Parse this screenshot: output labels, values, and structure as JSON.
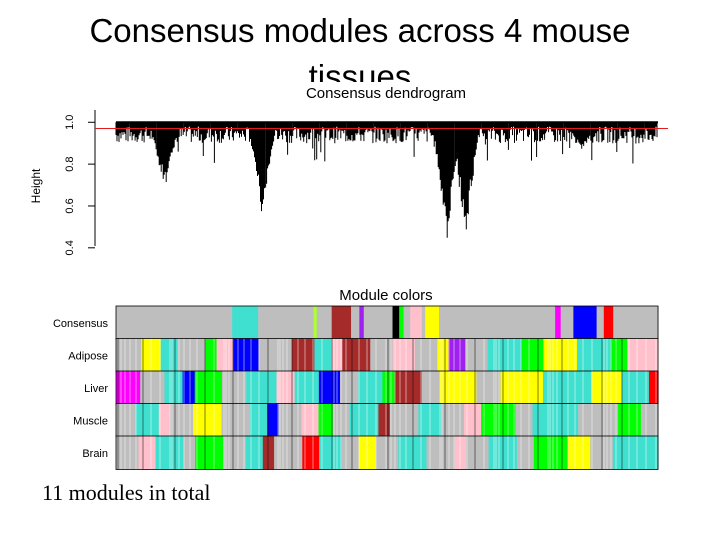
{
  "slide": {
    "title_line1": "Consensus modules across 4 mouse",
    "title_line2": "tissues",
    "caption": "11 modules in total"
  },
  "dendrogram": {
    "title": "Consensus dendrogram",
    "ylabel": "Height",
    "yticks": [
      "0.4",
      "0.6",
      "0.8",
      "1.0"
    ],
    "ytick_values": [
      0.4,
      0.6,
      0.8,
      1.0
    ],
    "ylim": [
      0.38,
      1.03
    ],
    "cut_height": 0.97,
    "cut_color": "#e41a1c",
    "deep_branches": [
      {
        "position": 0.09,
        "min_height": 0.67
      },
      {
        "position": 0.27,
        "min_height": 0.55
      },
      {
        "position": 0.61,
        "min_height": 0.42
      },
      {
        "position": 0.645,
        "min_height": 0.44
      },
      {
        "position": 0.86,
        "min_height": 0.87
      }
    ]
  },
  "module_colors": {
    "title": "Module colors",
    "rows": [
      {
        "label": "Consensus",
        "segments": [
          [
            "#bebebe",
            0.21
          ],
          [
            "#40e0d0",
            0.047
          ],
          [
            "#bebebe",
            0.1
          ],
          [
            "#adff2f",
            0.006
          ],
          [
            "#bebebe",
            0.027
          ],
          [
            "#a52a2a",
            0.035
          ],
          [
            "#bebebe",
            0.015
          ],
          [
            "#a020f0",
            0.008
          ],
          [
            "#bebebe",
            0.052
          ],
          [
            "#000000",
            0.012
          ],
          [
            "#00ff00",
            0.008
          ],
          [
            "#bebebe",
            0.012
          ],
          [
            "#ffc0cb",
            0.021
          ],
          [
            "#bebebe",
            0.006
          ],
          [
            "#ffff00",
            0.025
          ],
          [
            "#bebebe",
            0.21
          ],
          [
            "#ff00ff",
            0.01
          ],
          [
            "#bebebe",
            0.023
          ],
          [
            "#0000ff",
            0.042
          ],
          [
            "#bebebe",
            0.013
          ],
          [
            "#ff0000",
            0.017
          ],
          [
            "#bebebe",
            0.081
          ]
        ]
      },
      {
        "label": "Adipose",
        "segments": [
          [
            "#bebebe",
            0.045
          ],
          [
            "#ffff00",
            0.035
          ],
          [
            "#40e0d0",
            0.03
          ],
          [
            "#bebebe",
            0.05
          ],
          [
            "#00ff00",
            0.02
          ],
          [
            "#ffc0cb",
            0.03
          ],
          [
            "#0000ff",
            0.045
          ],
          [
            "#bebebe",
            0.06
          ],
          [
            "#a52a2a",
            0.04
          ],
          [
            "#40e0d0",
            0.03
          ],
          [
            "#ffc0cb",
            0.02
          ],
          [
            "#a52a2a",
            0.05
          ],
          [
            "#bebebe",
            0.04
          ],
          [
            "#ffc0cb",
            0.04
          ],
          [
            "#bebebe",
            0.04
          ],
          [
            "#ffff00",
            0.02
          ],
          [
            "#a020f0",
            0.03
          ],
          [
            "#bebebe",
            0.04
          ],
          [
            "#40e0d0",
            0.06
          ],
          [
            "#00ff00",
            0.04
          ],
          [
            "#ffff00",
            0.06
          ],
          [
            "#40e0d0",
            0.06
          ],
          [
            "#00ff00",
            0.03
          ],
          [
            "#ffc0cb",
            0.055
          ]
        ]
      },
      {
        "label": "Liver",
        "segments": [
          [
            "#ff00ff",
            0.04
          ],
          [
            "#bebebe",
            0.04
          ],
          [
            "#40e0d0",
            0.03
          ],
          [
            "#0000ff",
            0.02
          ],
          [
            "#00ff00",
            0.045
          ],
          [
            "#bebebe",
            0.04
          ],
          [
            "#40e0d0",
            0.05
          ],
          [
            "#ffc0cb",
            0.03
          ],
          [
            "#40e0d0",
            0.04
          ],
          [
            "#0000ff",
            0.035
          ],
          [
            "#bebebe",
            0.03
          ],
          [
            "#40e0d0",
            0.04
          ],
          [
            "#00ff00",
            0.02
          ],
          [
            "#a52a2a",
            0.045
          ],
          [
            "#bebebe",
            0.03
          ],
          [
            "#ffff00",
            0.06
          ],
          [
            "#bebebe",
            0.04
          ],
          [
            "#ffff00",
            0.07
          ],
          [
            "#40e0d0",
            0.08
          ],
          [
            "#ffff00",
            0.05
          ],
          [
            "#40e0d0",
            0.045
          ],
          [
            "#ff0000",
            0.015
          ]
        ]
      },
      {
        "label": "Muscle",
        "segments": [
          [
            "#bebebe",
            0.035
          ],
          [
            "#40e0d0",
            0.04
          ],
          [
            "#ffc0cb",
            0.02
          ],
          [
            "#bebebe",
            0.04
          ],
          [
            "#ffff00",
            0.05
          ],
          [
            "#bebebe",
            0.05
          ],
          [
            "#40e0d0",
            0.03
          ],
          [
            "#0000ff",
            0.02
          ],
          [
            "#bebebe",
            0.04
          ],
          [
            "#ffc0cb",
            0.03
          ],
          [
            "#00ff00",
            0.025
          ],
          [
            "#bebebe",
            0.03
          ],
          [
            "#40e0d0",
            0.05
          ],
          [
            "#a52a2a",
            0.02
          ],
          [
            "#bebebe",
            0.05
          ],
          [
            "#40e0d0",
            0.04
          ],
          [
            "#bebebe",
            0.04
          ],
          [
            "#ffc0cb",
            0.03
          ],
          [
            "#00ff00",
            0.06
          ],
          [
            "#bebebe",
            0.03
          ],
          [
            "#40e0d0",
            0.08
          ],
          [
            "#bebebe",
            0.07
          ],
          [
            "#00ff00",
            0.04
          ],
          [
            "#bebebe",
            0.03
          ]
        ]
      },
      {
        "label": "Brain",
        "segments": [
          [
            "#bebebe",
            0.04
          ],
          [
            "#ffc0cb",
            0.03
          ],
          [
            "#40e0d0",
            0.05
          ],
          [
            "#bebebe",
            0.02
          ],
          [
            "#00ff00",
            0.05
          ],
          [
            "#bebebe",
            0.04
          ],
          [
            "#40e0d0",
            0.03
          ],
          [
            "#a52a2a",
            0.02
          ],
          [
            "#bebebe",
            0.05
          ],
          [
            "#ff0000",
            0.03
          ],
          [
            "#40e0d0",
            0.04
          ],
          [
            "#bebebe",
            0.03
          ],
          [
            "#ffff00",
            0.03
          ],
          [
            "#bebebe",
            0.04
          ],
          [
            "#40e0d0",
            0.05
          ],
          [
            "#bebebe",
            0.05
          ],
          [
            "#ffc0cb",
            0.02
          ],
          [
            "#bebebe",
            0.04
          ],
          [
            "#40e0d0",
            0.05
          ],
          [
            "#bebebe",
            0.03
          ],
          [
            "#00ff00",
            0.06
          ],
          [
            "#ffff00",
            0.04
          ],
          [
            "#bebebe",
            0.04
          ],
          [
            "#40e0d0",
            0.08
          ]
        ]
      }
    ]
  }
}
